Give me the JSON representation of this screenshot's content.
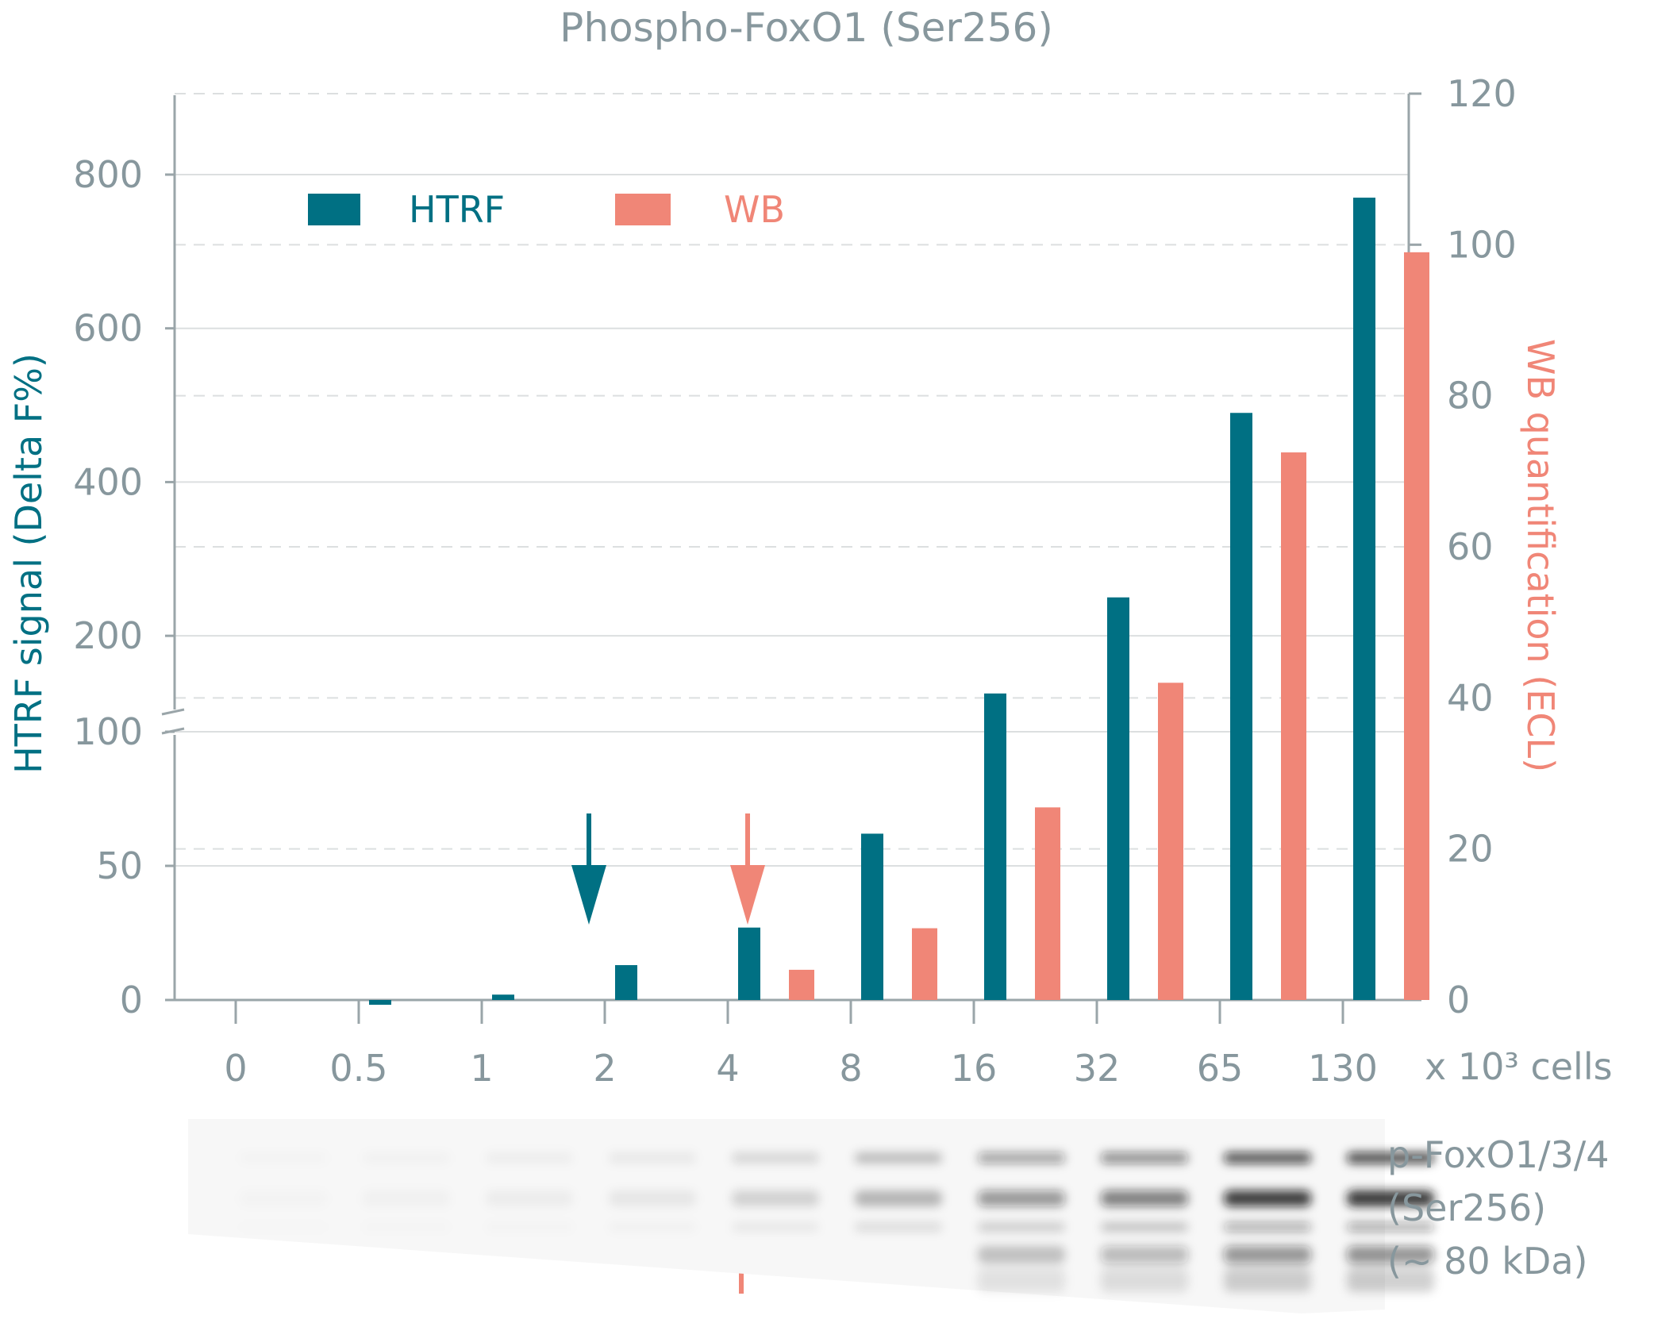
{
  "colors": {
    "htrf": "#007083",
    "wb": "#f08677",
    "axis": "#9aa5a9",
    "text": "#87979d",
    "grid": "#dcdfe0"
  },
  "chart_data": {
    "type": "bar",
    "title": "Phospho-FoxO1 (Ser256)",
    "categories": [
      "0",
      "0.5",
      "1",
      "2",
      "4",
      "8",
      "16",
      "32",
      "65",
      "130"
    ],
    "x_unit_label": "x 10³ cells",
    "y_left": {
      "label": "HTRF signal (Delta F%)",
      "broken_axis": true,
      "lower_segment": {
        "range": [
          0,
          100
        ],
        "ticks": [
          "0",
          "50",
          "100"
        ]
      },
      "upper_segment": {
        "range": [
          100,
          800
        ],
        "ticks": [
          "200",
          "400",
          "600",
          "800"
        ]
      },
      "tick_values": [
        0,
        50,
        100,
        200,
        400,
        600,
        800
      ]
    },
    "y_right": {
      "label": "WB quantification (ECL)",
      "range": [
        0,
        120
      ],
      "ticks": [
        "0",
        "20",
        "40",
        "60",
        "80",
        "100",
        "120"
      ],
      "tick_values": [
        0,
        20,
        40,
        60,
        80,
        100,
        120
      ]
    },
    "series": [
      {
        "name": "HTRF",
        "axis": "left",
        "values": [
          0,
          -2,
          2,
          13,
          27,
          62,
          125,
          250,
          490,
          770
        ]
      },
      {
        "name": "WB",
        "axis": "right",
        "values": [
          0,
          0,
          0,
          0,
          4,
          9.5,
          25.5,
          42,
          72.5,
          99
        ]
      }
    ],
    "legend": {
      "placement": "top-left",
      "entries": [
        "HTRF",
        "WB"
      ]
    },
    "annotations": [
      {
        "type": "arrow-down",
        "series": "HTRF",
        "category": "2"
      },
      {
        "type": "arrow-down",
        "series": "WB",
        "category": "4"
      },
      {
        "type": "arrow-up",
        "series": "WB",
        "category": "4",
        "position": "below blot"
      }
    ],
    "grid": true
  },
  "blot": {
    "label_lines": [
      "p-FoxO1/3/4",
      "(Ser256)",
      "(~ 80 kDa)"
    ],
    "band_intensity": [
      0.02,
      0.03,
      0.05,
      0.08,
      0.18,
      0.32,
      0.5,
      0.62,
      0.95,
      1.0
    ]
  }
}
